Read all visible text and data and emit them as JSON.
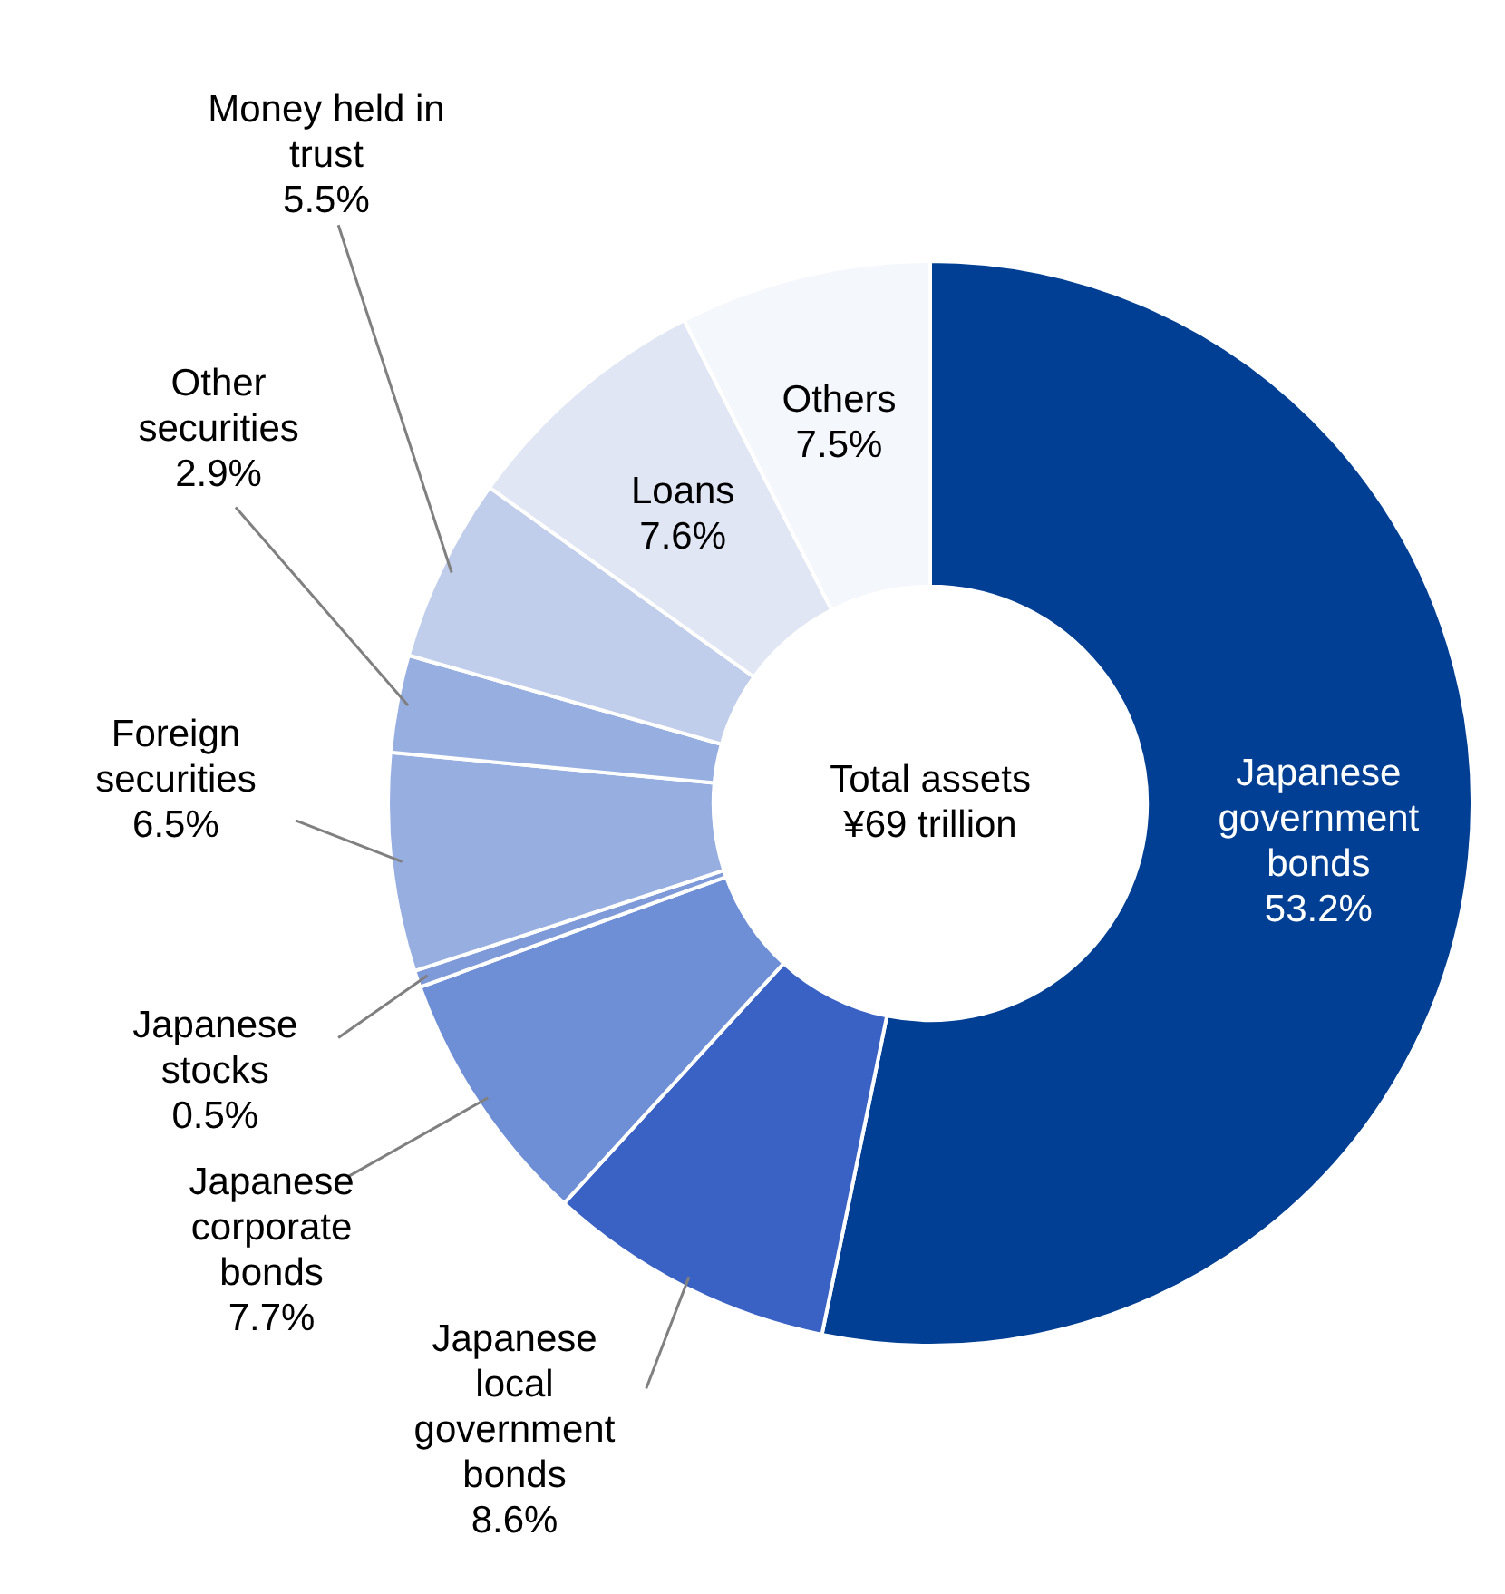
{
  "chart_data": {
    "type": "donut",
    "categories": [
      "Japanese government bonds",
      "Japanese local government bonds",
      "Japanese corporate bonds",
      "Japanese stocks",
      "Foreign securities",
      "Other securities",
      "Money held in trust",
      "Loans",
      "Others"
    ],
    "values": [
      53.2,
      8.6,
      7.7,
      0.5,
      6.5,
      2.9,
      5.5,
      7.6,
      7.5
    ],
    "value_labels": [
      "53.2%",
      "8.6%",
      "7.7%",
      "0.5%",
      "6.5%",
      "2.9%",
      "5.5%",
      "7.6%",
      "7.5%"
    ],
    "colors": [
      "#003f93",
      "#3a62c4",
      "#6e8ed6",
      "#7f9ad8",
      "#97aee0",
      "#97aee0",
      "#c0cdeb",
      "#e1e6f5",
      "#f4f7fc"
    ],
    "annotations": [
      "Total assets ¥69 trillion"
    ],
    "legend": false
  }
}
